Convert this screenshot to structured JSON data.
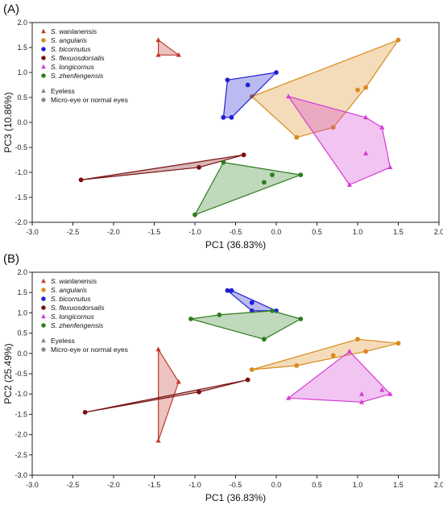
{
  "chart_data": [
    {
      "panel_label": "(A)",
      "type": "scatter",
      "xlabel": "PC1 (36.83%)",
      "ylabel": "PC3 (10.86%)",
      "xlim": [
        -3.0,
        2.0
      ],
      "ylim": [
        -2.0,
        2.0
      ],
      "xticks": [
        "-3.0",
        "-2.5",
        "-2.0",
        "-1.5",
        "-1.0",
        "-0.5",
        "0.0",
        "0.5",
        "1.0",
        "1.5",
        "2.0"
      ],
      "yticks": [
        "-2.0",
        "-1.5",
        "-1.0",
        "-0.5",
        "0.0",
        "0.5",
        "1.0",
        "1.5",
        "2.0"
      ],
      "grid": false,
      "legend_position": "top-left",
      "series": [
        {
          "name": "S. wanlanensis",
          "color": "#c0392b",
          "marker": "triangle",
          "points": [
            [
              -1.45,
              1.65
            ],
            [
              -1.45,
              1.35
            ],
            [
              -1.2,
              1.35
            ]
          ]
        },
        {
          "name": "S. angularis",
          "color": "#d98a1c",
          "marker": "circle",
          "points": [
            [
              -0.3,
              0.52
            ],
            [
              0.25,
              -0.3
            ],
            [
              0.7,
              -0.1
            ],
            [
              1.0,
              0.65
            ],
            [
              1.1,
              0.7
            ],
            [
              1.5,
              1.65
            ]
          ]
        },
        {
          "name": "S. bicornutus",
          "color": "#1f1fd1",
          "marker": "circle",
          "points": [
            [
              -0.65,
              0.1
            ],
            [
              -0.55,
              0.1
            ],
            [
              -0.6,
              0.85
            ],
            [
              -0.35,
              0.75
            ],
            [
              0.0,
              1.0
            ]
          ]
        },
        {
          "name": "S. flexuosdorsalis",
          "color": "#7a1010",
          "marker": "circle",
          "points": [
            [
              -2.4,
              -1.15
            ],
            [
              -0.95,
              -0.9
            ],
            [
              -0.4,
              -0.65
            ]
          ]
        },
        {
          "name": "S. longicornus",
          "color": "#d43bd4",
          "marker": "triangle",
          "points": [
            [
              0.15,
              0.52
            ],
            [
              0.9,
              -1.25
            ],
            [
              1.1,
              0.1
            ],
            [
              1.1,
              -0.62
            ],
            [
              1.3,
              -0.1
            ],
            [
              1.4,
              -0.9
            ]
          ]
        },
        {
          "name": "S. zhenfengensis",
          "color": "#2e7d1e",
          "marker": "circle",
          "points": [
            [
              -1.0,
              -1.85
            ],
            [
              -0.65,
              -0.8
            ],
            [
              -0.15,
              -1.2
            ],
            [
              -0.05,
              -1.05
            ],
            [
              0.3,
              -1.05
            ]
          ]
        }
      ]
    },
    {
      "panel_label": "(B)",
      "type": "scatter",
      "xlabel": "PC1 (36.83%)",
      "ylabel": "PC2 (25.49%)",
      "xlim": [
        -3.0,
        2.0
      ],
      "ylim": [
        -3.0,
        2.0
      ],
      "xticks": [
        "-3.0",
        "-2.5",
        "-2.0",
        "-1.5",
        "-1.0",
        "-0.5",
        "0.0",
        "0.5",
        "1.0",
        "1.5",
        "2.0"
      ],
      "yticks": [
        "-3.0",
        "-2.5",
        "-2.0",
        "-1.5",
        "-1.0",
        "-0.5",
        "0.0",
        "0.5",
        "1.0",
        "1.5",
        "2.0"
      ],
      "grid": false,
      "legend_position": "top-left",
      "series": [
        {
          "name": "S. wanlanensis",
          "color": "#c0392b",
          "marker": "triangle",
          "points": [
            [
              -1.45,
              0.1
            ],
            [
              -1.45,
              -2.15
            ],
            [
              -1.2,
              -0.7
            ]
          ]
        },
        {
          "name": "S. angularis",
          "color": "#d98a1c",
          "marker": "circle",
          "points": [
            [
              -0.3,
              -0.4
            ],
            [
              0.25,
              -0.3
            ],
            [
              0.7,
              -0.05
            ],
            [
              1.0,
              0.35
            ],
            [
              1.1,
              0.05
            ],
            [
              1.5,
              0.25
            ]
          ]
        },
        {
          "name": "S. bicornutus",
          "color": "#1f1fd1",
          "marker": "circle",
          "points": [
            [
              -0.6,
              1.55
            ],
            [
              -0.55,
              1.55
            ],
            [
              -0.3,
              1.25
            ],
            [
              -0.3,
              1.05
            ],
            [
              0.0,
              1.05
            ]
          ]
        },
        {
          "name": "S. flexuosdorsalis",
          "color": "#7a1010",
          "marker": "circle",
          "points": [
            [
              -2.35,
              -1.45
            ],
            [
              -0.95,
              -0.95
            ],
            [
              -0.35,
              -0.65
            ]
          ]
        },
        {
          "name": "S. longicornus",
          "color": "#d43bd4",
          "marker": "triangle",
          "points": [
            [
              0.15,
              -1.1
            ],
            [
              0.9,
              0.05
            ],
            [
              1.05,
              -1.2
            ],
            [
              1.05,
              -1.0
            ],
            [
              1.3,
              -0.9
            ],
            [
              1.4,
              -1.0
            ]
          ]
        },
        {
          "name": "S. zhenfengensis",
          "color": "#2e7d1e",
          "marker": "circle",
          "points": [
            [
              -1.05,
              0.85
            ],
            [
              -0.7,
              0.95
            ],
            [
              -0.15,
              0.35
            ],
            [
              -0.05,
              1.05
            ],
            [
              0.3,
              0.85
            ]
          ]
        }
      ]
    }
  ],
  "legend_extra": [
    {
      "label": "Eyeless",
      "marker": "triangle",
      "color": "#888888"
    },
    {
      "label": "Micro-eye or normal eyes",
      "marker": "circle",
      "color": "#888888"
    }
  ]
}
